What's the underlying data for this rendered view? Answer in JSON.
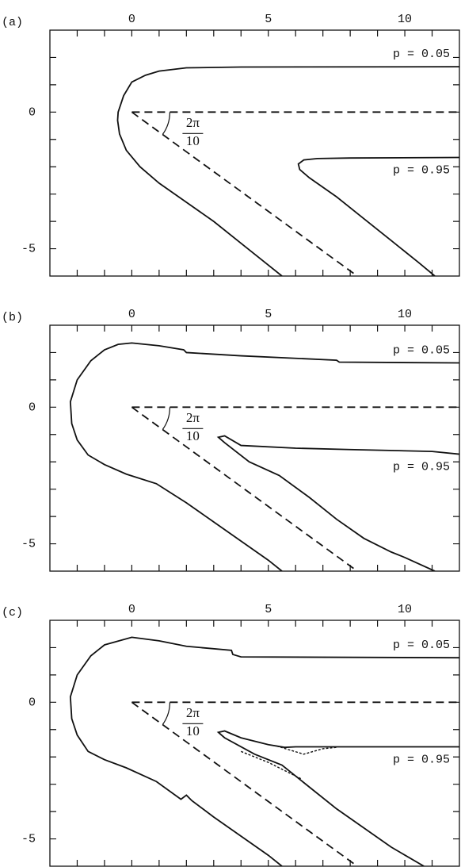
{
  "chart_data": [
    {
      "type": "line",
      "panel_label": "(a)",
      "xlim": [
        -3,
        12
      ],
      "ylim": [
        -6,
        3
      ],
      "xticks": [
        0,
        5,
        10
      ],
      "yticks": [
        -5,
        0
      ],
      "xminorticks": [
        -2,
        -1,
        1,
        2,
        3,
        4,
        6,
        7,
        8,
        9,
        11
      ],
      "yminorticks": [
        -4,
        -3,
        -2,
        -1,
        1,
        2
      ],
      "angle_label": {
        "numerator": "2π",
        "denominator": "10"
      },
      "series": [
        {
          "name": "p = 0.05",
          "style": "solid",
          "x": [
            12,
            4,
            2,
            1,
            0.5,
            0,
            -0.3,
            -0.5,
            -0.52,
            -0.45,
            -0.2,
            0.3,
            1,
            2,
            3,
            4,
            5,
            5.5
          ],
          "values": [
            1.66,
            1.65,
            1.62,
            1.5,
            1.35,
            1.1,
            0.6,
            0,
            -0.3,
            -0.8,
            -1.4,
            -2.0,
            -2.6,
            -3.3,
            -4.0,
            -4.8,
            -5.6,
            -6
          ]
        },
        {
          "name": "p = 0.95",
          "style": "solid",
          "x": [
            12,
            8,
            6.8,
            6.3,
            6.1,
            6.15,
            6.5,
            7.5,
            8.5,
            9.5,
            10.5,
            11.1
          ],
          "values": [
            -1.66,
            -1.68,
            -1.7,
            -1.75,
            -1.9,
            -2.1,
            -2.4,
            -3.1,
            -3.9,
            -4.7,
            -5.5,
            -6
          ]
        },
        {
          "style": "dashed",
          "x": [
            0,
            12
          ],
          "values": [
            0,
            0
          ]
        },
        {
          "style": "dashed",
          "x": [
            0,
            8.26
          ],
          "values": [
            0,
            -6
          ]
        }
      ]
    },
    {
      "type": "line",
      "panel_label": "(b)",
      "xlim": [
        -3,
        12
      ],
      "ylim": [
        -6,
        3
      ],
      "xticks": [
        0,
        5,
        10
      ],
      "yticks": [
        -5,
        0
      ],
      "xminorticks": [
        -2,
        -1,
        1,
        2,
        3,
        4,
        6,
        7,
        8,
        9,
        11
      ],
      "yminorticks": [
        -4,
        -3,
        -2,
        -1,
        1,
        2
      ],
      "angle_label": {
        "numerator": "2π",
        "denominator": "10"
      },
      "series": [
        {
          "name": "p = 0.05",
          "style": "solid",
          "x": [
            12,
            7.6,
            7.5,
            4,
            2,
            1.9,
            1,
            0,
            -0.5,
            -1,
            -1.5,
            -2,
            -2.25,
            -2.2,
            -2,
            -1.6,
            -1,
            -0.2,
            0.9,
            2,
            3,
            4,
            5,
            5.5
          ],
          "values": [
            1.62,
            1.65,
            1.72,
            1.88,
            2.0,
            2.1,
            2.25,
            2.35,
            2.3,
            2.1,
            1.7,
            1.0,
            0.2,
            -0.6,
            -1.2,
            -1.75,
            -2.1,
            -2.45,
            -2.8,
            -3.5,
            -4.2,
            -4.9,
            -5.6,
            -6
          ]
        },
        {
          "name": "p = 0.95",
          "style": "solid",
          "x": [
            12,
            11,
            8,
            6,
            4,
            3.4,
            3.17,
            3.4,
            4.3,
            5.4,
            6.5,
            7.5,
            8.5,
            9.5,
            10,
            11.1
          ],
          "values": [
            -1.72,
            -1.62,
            -1.55,
            -1.5,
            -1.4,
            -1.05,
            -1.1,
            -1.3,
            -2.0,
            -2.5,
            -3.3,
            -4.1,
            -4.8,
            -5.3,
            -5.5,
            -6
          ]
        },
        {
          "style": "dashed",
          "x": [
            0,
            12
          ],
          "values": [
            0,
            0
          ]
        },
        {
          "style": "dashed",
          "x": [
            0,
            8.26
          ],
          "values": [
            0,
            -6
          ]
        }
      ]
    },
    {
      "type": "line",
      "panel_label": "(c)",
      "xlim": [
        -3,
        12
      ],
      "ylim": [
        -6,
        3
      ],
      "xticks": [
        0,
        5,
        10
      ],
      "yticks": [
        -5,
        0
      ],
      "xminorticks": [
        -2,
        -1,
        1,
        2,
        3,
        4,
        6,
        7,
        8,
        9,
        11
      ],
      "yminorticks": [
        -4,
        -3,
        -2,
        -1,
        1,
        2
      ],
      "angle_label": {
        "numerator": "2π",
        "denominator": "10"
      },
      "series": [
        {
          "name": "p = 0.05",
          "style": "solid",
          "x": [
            12,
            4,
            3.7,
            3.65,
            2,
            1,
            0,
            -1,
            -1.5,
            -2,
            -2.25,
            -2.2,
            -2,
            -1.6,
            -1,
            -0.2,
            0.9,
            1.8,
            2,
            2.2,
            3,
            4,
            5,
            5.5
          ],
          "values": [
            1.63,
            1.66,
            1.75,
            1.9,
            2.05,
            2.25,
            2.38,
            2.1,
            1.7,
            1.0,
            0.2,
            -0.6,
            -1.2,
            -1.8,
            -2.1,
            -2.4,
            -2.9,
            -3.55,
            -3.4,
            -3.6,
            -4.2,
            -4.9,
            -5.6,
            -6
          ]
        },
        {
          "name": "p = 0.95",
          "style": "solid",
          "x": [
            12,
            8,
            6,
            5.6,
            5,
            4,
            3.4,
            3.17,
            3.4,
            4.5,
            5.5,
            6.5,
            7.5,
            8.5,
            9.5,
            10.7
          ],
          "values": [
            -1.63,
            -1.63,
            -1.63,
            -1.65,
            -1.55,
            -1.3,
            -1.05,
            -1.1,
            -1.3,
            -1.9,
            -2.3,
            -3.1,
            -3.9,
            -4.6,
            -5.3,
            -6
          ]
        },
        {
          "style": "dashed",
          "x": [
            0,
            12
          ],
          "values": [
            0,
            0
          ]
        },
        {
          "style": "dashed",
          "x": [
            0,
            8.26
          ],
          "values": [
            0,
            -6
          ]
        },
        {
          "style": "dotted",
          "x": [
            5.3,
            5.8,
            6.3,
            7,
            7.5
          ],
          "values": [
            -1.6,
            -1.75,
            -1.9,
            -1.7,
            -1.65
          ]
        },
        {
          "style": "dotted",
          "x": [
            4,
            5,
            6.2
          ],
          "values": [
            -1.8,
            -2.2,
            -2.8
          ]
        }
      ]
    }
  ]
}
